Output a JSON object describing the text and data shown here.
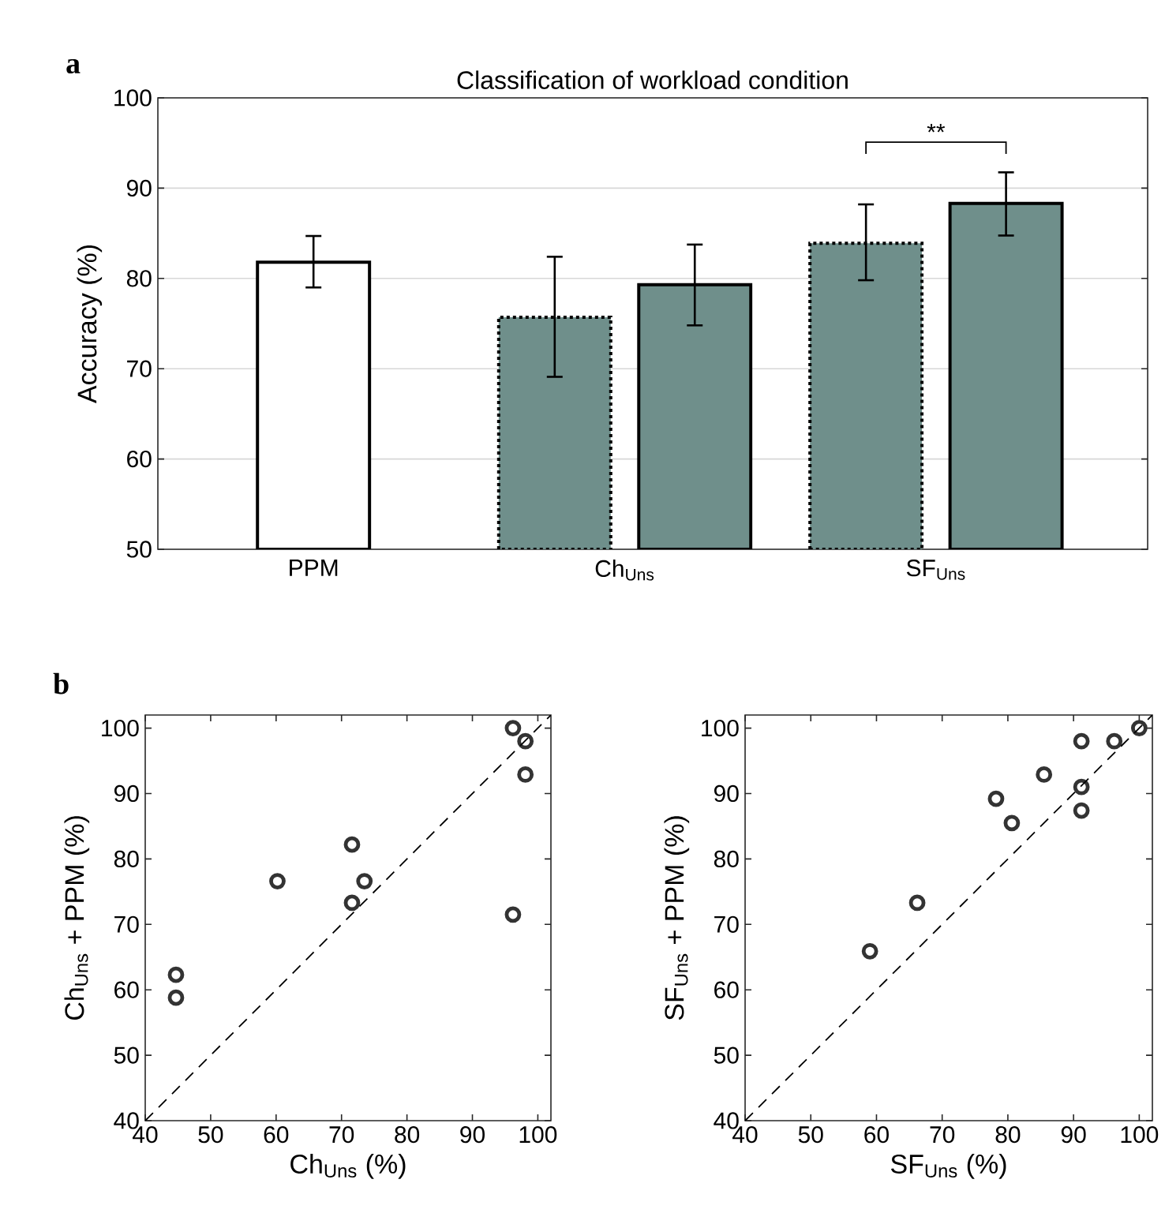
{
  "chart_data": [
    {
      "type": "bar",
      "title": "Classification of workload condition",
      "ylabel": "Accuracy (%)",
      "categories": [
        "PPM",
        "Ch$_{Uns}$",
        "SF$_{Uns}$"
      ],
      "series": [
        {
          "color": "#ffffff",
          "line_style": "solid",
          "values": [
            81.8,
            null,
            null
          ],
          "errors": [
            [
              79.0,
              84.7
            ],
            null,
            null
          ]
        },
        {
          "color": "#6f8f8b",
          "line_style": "dotted",
          "values": [
            null,
            75.7,
            83.9
          ],
          "errors": [
            null,
            [
              69.1,
              82.4
            ],
            [
              79.8,
              88.2
            ]
          ]
        },
        {
          "color": "#6f8f8b",
          "line_style": "solid",
          "values": [
            null,
            79.3,
            88.3
          ],
          "errors": [
            null,
            [
              74.8,
              83.75
            ],
            [
              84.75,
              91.75
            ]
          ]
        }
      ],
      "ylim": [
        50,
        100
      ],
      "yticks": [
        50,
        60,
        70,
        80,
        90,
        100
      ],
      "grid": "y",
      "annotations": [
        "a",
        "**"
      ]
    },
    {
      "type": "scatter",
      "xlabel": "Ch$_{Uns}$ (%)",
      "ylabel": "Ch$_{Uns}$ + PPM (%)",
      "series": [
        {
          "type": "scatter",
          "marker": "circle",
          "color": "#333333",
          "x": [
            96.2,
            98.1,
            98.1,
            71.6,
            60.2,
            73.5,
            71.6,
            96.2,
            44.7,
            44.7
          ],
          "values": [
            100,
            98.0,
            92.9,
            82.2,
            76.6,
            76.6,
            73.3,
            71.5,
            62.3,
            58.8
          ]
        },
        {
          "type": "line",
          "marker": "none",
          "color": "#000000",
          "line_style": "dashed",
          "x": [
            40,
            102
          ],
          "values": [
            40,
            102
          ]
        }
      ],
      "xlim": [
        40,
        102
      ],
      "ylim": [
        40,
        102
      ],
      "xticks": [
        40,
        50,
        60,
        70,
        80,
        90,
        100
      ],
      "yticks": [
        40,
        50,
        60,
        70,
        80,
        90,
        100
      ],
      "annotations": [
        "b"
      ]
    },
    {
      "type": "scatter",
      "xlabel": "SF$_{Uns}$ (%)",
      "ylabel": "SF$_{Uns}$ + PPM (%)",
      "series": [
        {
          "type": "scatter",
          "marker": "circle",
          "color": "#333333",
          "x": [
            100,
            91.2,
            96.2,
            85.5,
            91.2,
            78.2,
            91.2,
            80.6,
            66.2,
            59.0
          ],
          "values": [
            100,
            98.0,
            98.0,
            92.9,
            91.0,
            89.2,
            87.4,
            85.5,
            73.3,
            65.9
          ]
        },
        {
          "type": "line",
          "marker": "none",
          "color": "#000000",
          "line_style": "dashed",
          "x": [
            40,
            102
          ],
          "values": [
            40,
            102
          ]
        }
      ],
      "xlim": [
        40,
        102
      ],
      "ylim": [
        40,
        102
      ],
      "xticks": [
        40,
        50,
        60,
        70,
        80,
        90,
        100
      ],
      "yticks": [
        40,
        50,
        60,
        70,
        80,
        90,
        100
      ]
    }
  ]
}
